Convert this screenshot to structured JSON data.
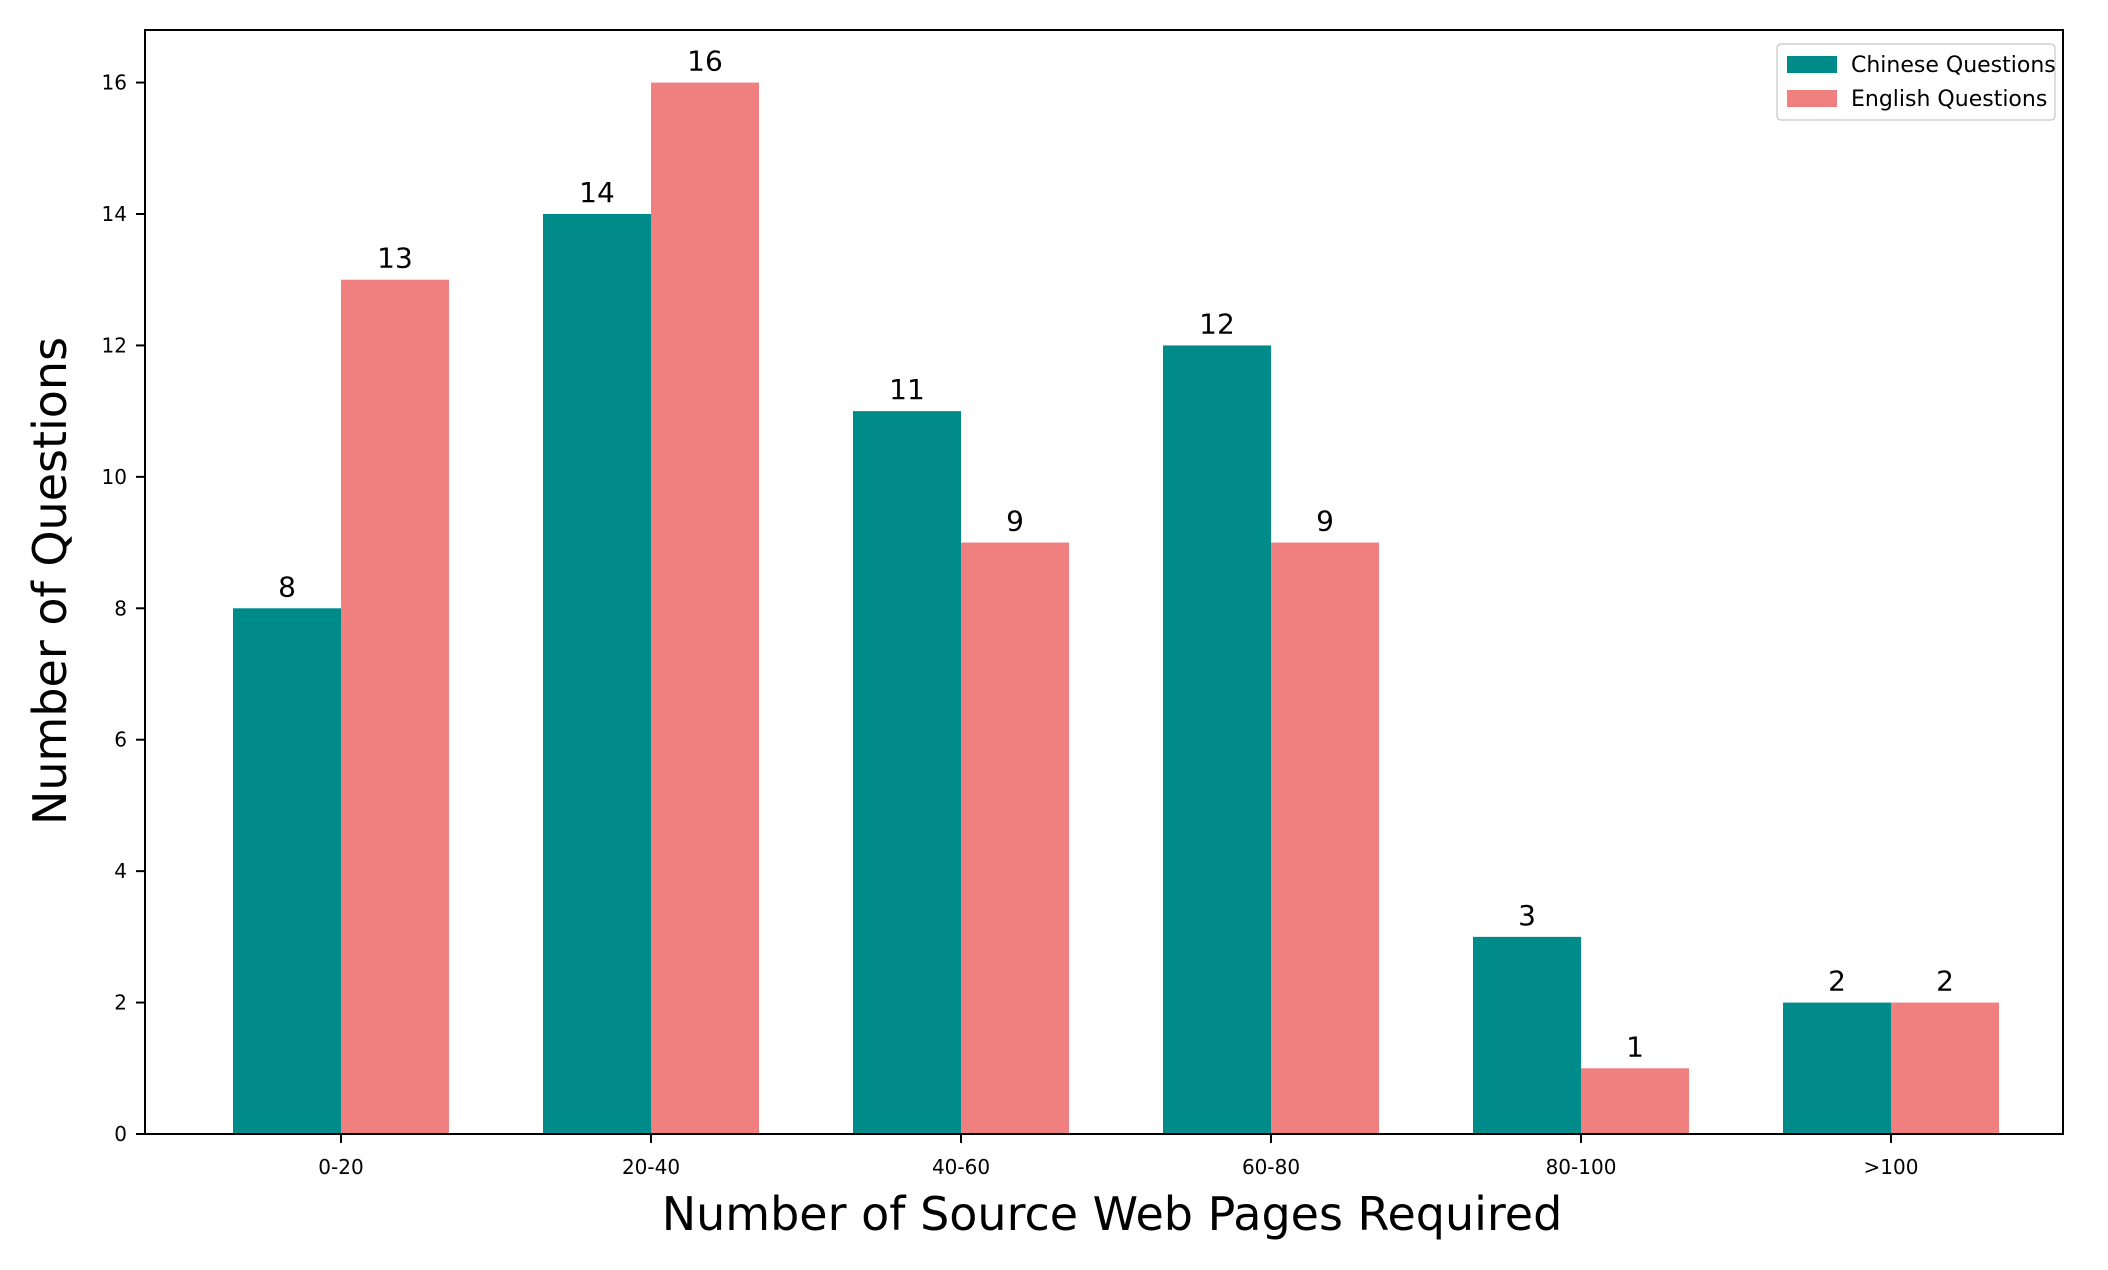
{
  "chart_data": {
    "type": "bar",
    "title": "",
    "xlabel": "Number of Source Web Pages Required",
    "ylabel": "Number of Questions",
    "categories": [
      "0-20",
      "20-40",
      "40-60",
      "60-80",
      "80-100",
      ">100"
    ],
    "series": [
      {
        "name": "Chinese Questions",
        "color": "#008b8b",
        "values": [
          8,
          14,
          11,
          12,
          3,
          2
        ]
      },
      {
        "name": "English Questions",
        "color": "#f08080",
        "values": [
          13,
          16,
          9,
          9,
          1,
          2
        ]
      }
    ],
    "ylim": [
      0,
      16.8
    ],
    "yticks": [
      0,
      2,
      4,
      6,
      8,
      10,
      12,
      14,
      16
    ],
    "grid": false,
    "legend_position": "top-right",
    "data_labels": true
  }
}
